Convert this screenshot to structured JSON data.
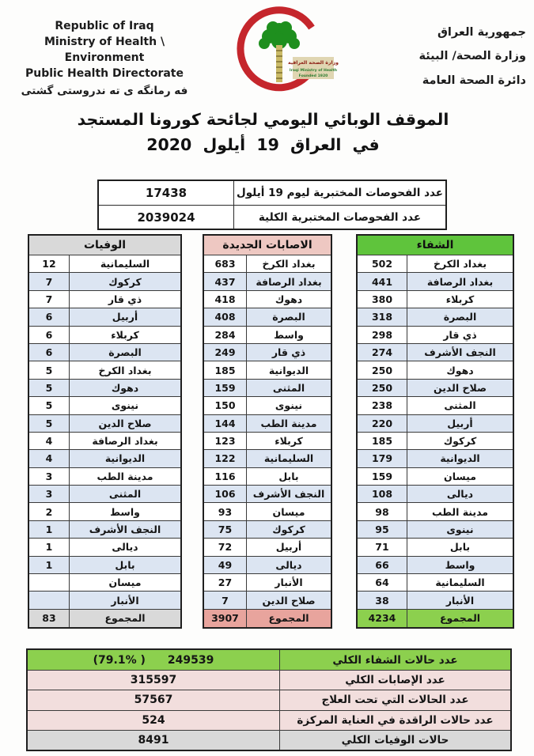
{
  "colors": {
    "stripe": "#DCE5F2",
    "border": "#1f1f1f",
    "recoveries_header": "#5FC43C",
    "recoveries_total": "#8CD04E",
    "cases_header": "#EEC8C2",
    "cases_total": "#E8A49D",
    "deaths_header": "#D9D9D9",
    "deaths_total": "#D9D9D9",
    "summary_green": "#8CD04E",
    "summary_pink": "#F2DEDD",
    "summary_gray": "#D9D9D9",
    "crescent_red": "#C5262C",
    "palm_green": "#1E8F1E"
  },
  "header": {
    "english_lines": [
      "Republic of Iraq",
      "Ministry of Health \\ Environment",
      "Public Health Directorate"
    ],
    "kurdish_line": "فه رمانگه ى ته ندروستى گشتى",
    "arabic_lines": [
      "جمهورية العراق",
      "وزارة الصحة/ البيئة",
      "دائرة الصحة العامة"
    ],
    "logo": {
      "arabic": "وزارة الصحة العراقية",
      "english": "Iraqi Ministry of Health",
      "founded": "Founded 1920"
    }
  },
  "title": {
    "line1": "الموقف الوبائي اليومي لجائحة كورونا المستجد",
    "line2": "في العراق 19 أيلول 2020"
  },
  "tests": {
    "rows": [
      {
        "label": "عدد الفحوصات المختبرية ليوم 19 أيلول",
        "value": "17438"
      },
      {
        "label": "عدد الفحوصات المختبرية الكلية",
        "value": "2039024"
      }
    ]
  },
  "tables": {
    "deaths": {
      "title": "الوفيات",
      "header_color": "#D9D9D9",
      "total_color": "#D9D9D9",
      "rows": [
        [
          "السليمانية",
          "12"
        ],
        [
          "كركوك",
          "7"
        ],
        [
          "ذي قار",
          "7"
        ],
        [
          "أربيل",
          "6"
        ],
        [
          "كربلاء",
          "6"
        ],
        [
          "البصرة",
          "6"
        ],
        [
          "بغداد الكرخ",
          "5"
        ],
        [
          "دهوك",
          "5"
        ],
        [
          "نينوى",
          "5"
        ],
        [
          "صلاح الدين",
          "5"
        ],
        [
          "بغداد الرصافة",
          "4"
        ],
        [
          "الديوانية",
          "4"
        ],
        [
          "مدينة الطب",
          "3"
        ],
        [
          "المثنى",
          "3"
        ],
        [
          "واسط",
          "2"
        ],
        [
          "النجف الأشرف",
          "1"
        ],
        [
          "ديالى",
          "1"
        ],
        [
          "بابل",
          "1"
        ],
        [
          "ميسان",
          ""
        ],
        [
          "الأنبار",
          ""
        ]
      ],
      "total_label": "المجموع",
      "total_value": "83"
    },
    "new_cases": {
      "title": "الاصابات الجديدة",
      "header_color": "#EEC8C2",
      "total_color": "#E8A49D",
      "rows": [
        [
          "بغداد الكرخ",
          "683"
        ],
        [
          "بغداد الرصافة",
          "437"
        ],
        [
          "دهوك",
          "418"
        ],
        [
          "البصرة",
          "408"
        ],
        [
          "واسط",
          "284"
        ],
        [
          "ذي قار",
          "249"
        ],
        [
          "الديوانية",
          "185"
        ],
        [
          "المثنى",
          "159"
        ],
        [
          "نينوى",
          "150"
        ],
        [
          "مدينة الطب",
          "144"
        ],
        [
          "كربلاء",
          "123"
        ],
        [
          "السليمانية",
          "122"
        ],
        [
          "بابل",
          "116"
        ],
        [
          "النجف الأشرف",
          "106"
        ],
        [
          "ميسان",
          "93"
        ],
        [
          "كركوك",
          "75"
        ],
        [
          "أربيل",
          "72"
        ],
        [
          "ديالى",
          "49"
        ],
        [
          "الأنبار",
          "27"
        ],
        [
          "صلاح الدين",
          "7"
        ]
      ],
      "total_label": "المجموع",
      "total_value": "3907"
    },
    "recoveries": {
      "title": "الشفاء",
      "header_color": "#5FC43C",
      "total_color": "#8CD04E",
      "rows": [
        [
          "بغداد الكرخ",
          "502"
        ],
        [
          "بغداد الرصافة",
          "441"
        ],
        [
          "كربلاء",
          "380"
        ],
        [
          "البصرة",
          "318"
        ],
        [
          "ذي قار",
          "298"
        ],
        [
          "النجف الأشرف",
          "274"
        ],
        [
          "دهوك",
          "250"
        ],
        [
          "صلاح الدين",
          "250"
        ],
        [
          "المثنى",
          "238"
        ],
        [
          "أربيل",
          "220"
        ],
        [
          "كركوك",
          "185"
        ],
        [
          "الديوانية",
          "179"
        ],
        [
          "ميسان",
          "159"
        ],
        [
          "ديالى",
          "108"
        ],
        [
          "مدينة الطب",
          "98"
        ],
        [
          "نينوى",
          "95"
        ],
        [
          "بابل",
          "71"
        ],
        [
          "واسط",
          "66"
        ],
        [
          "السليمانية",
          "64"
        ],
        [
          "الأنبار",
          "38"
        ]
      ],
      "total_label": "المجموع",
      "total_value": "4234"
    }
  },
  "summary": {
    "rows": [
      {
        "label": "عدد حالات الشفاء الكلي",
        "value": "249539",
        "percent": "(79.1% )",
        "bg": "#8CD04E"
      },
      {
        "label": "عدد الإصابات الكلي",
        "value": "315597",
        "bg": "#F2DEDD"
      },
      {
        "label": "عدد الحالات التي تحت العلاج",
        "value": "57567",
        "bg": "#F2DEDD"
      },
      {
        "label": "عدد حالات الراقدة في العناية المركزة",
        "value": "524",
        "bg": "#F2DEDD"
      },
      {
        "label": "حالات الوفيات الكلي",
        "value": "8491",
        "bg": "#D9D9D9"
      }
    ]
  }
}
